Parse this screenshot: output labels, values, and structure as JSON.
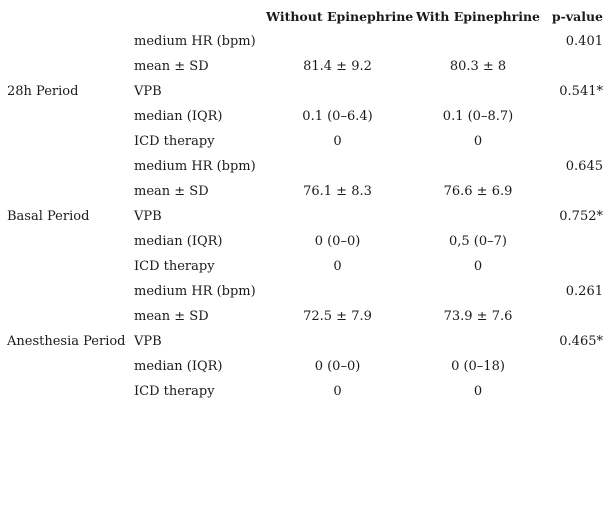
{
  "table": {
    "headers": {
      "without": "Without Epinephrine",
      "with": "With Epinephrine",
      "p": "p-value"
    },
    "groups": [
      {
        "period": "28h Period",
        "rows": [
          {
            "label": "medium HR (bpm)",
            "without": "",
            "with": "",
            "p": "0.401"
          },
          {
            "label": "mean ± SD",
            "without": "81.4 ± 9.2",
            "with": "80.3 ± 8",
            "p": ""
          },
          {
            "label": "VPB",
            "without": "",
            "with": "",
            "p": "0.541*"
          },
          {
            "label": "median (IQR)",
            "without": "0.1 (0–6.4)",
            "with": "0.1 (0–8.7)",
            "p": ""
          },
          {
            "label": "ICD therapy",
            "without": "0",
            "with": "0",
            "p": ""
          }
        ]
      },
      {
        "period": "Basal Period",
        "rows": [
          {
            "label": "medium HR (bpm)",
            "without": "",
            "with": "",
            "p": "0.645"
          },
          {
            "label": "mean ± SD",
            "without": "76.1 ± 8.3",
            "with": "76.6 ± 6.9",
            "p": ""
          },
          {
            "label": "VPB",
            "without": "",
            "with": "",
            "p": "0.752*"
          },
          {
            "label": "median (IQR)",
            "without": "0 (0–0)",
            "with": "0,5 (0–7)",
            "p": ""
          },
          {
            "label": "ICD therapy",
            "without": "0",
            "with": "0",
            "p": ""
          }
        ]
      },
      {
        "period": "Anesthesia Period",
        "rows": [
          {
            "label": "medium HR (bpm)",
            "without": "",
            "with": "",
            "p": "0.261"
          },
          {
            "label": "mean ± SD",
            "without": "72.5 ± 7.9",
            "with": "73.9 ± 7.6",
            "p": ""
          },
          {
            "label": "VPB",
            "without": "",
            "with": "",
            "p": "0.465*"
          },
          {
            "label": "median (IQR)",
            "without": "0 (0–0)",
            "with": "0 (0–18)",
            "p": ""
          },
          {
            "label": "ICD therapy",
            "without": "0",
            "with": "0",
            "p": ""
          }
        ]
      }
    ]
  }
}
